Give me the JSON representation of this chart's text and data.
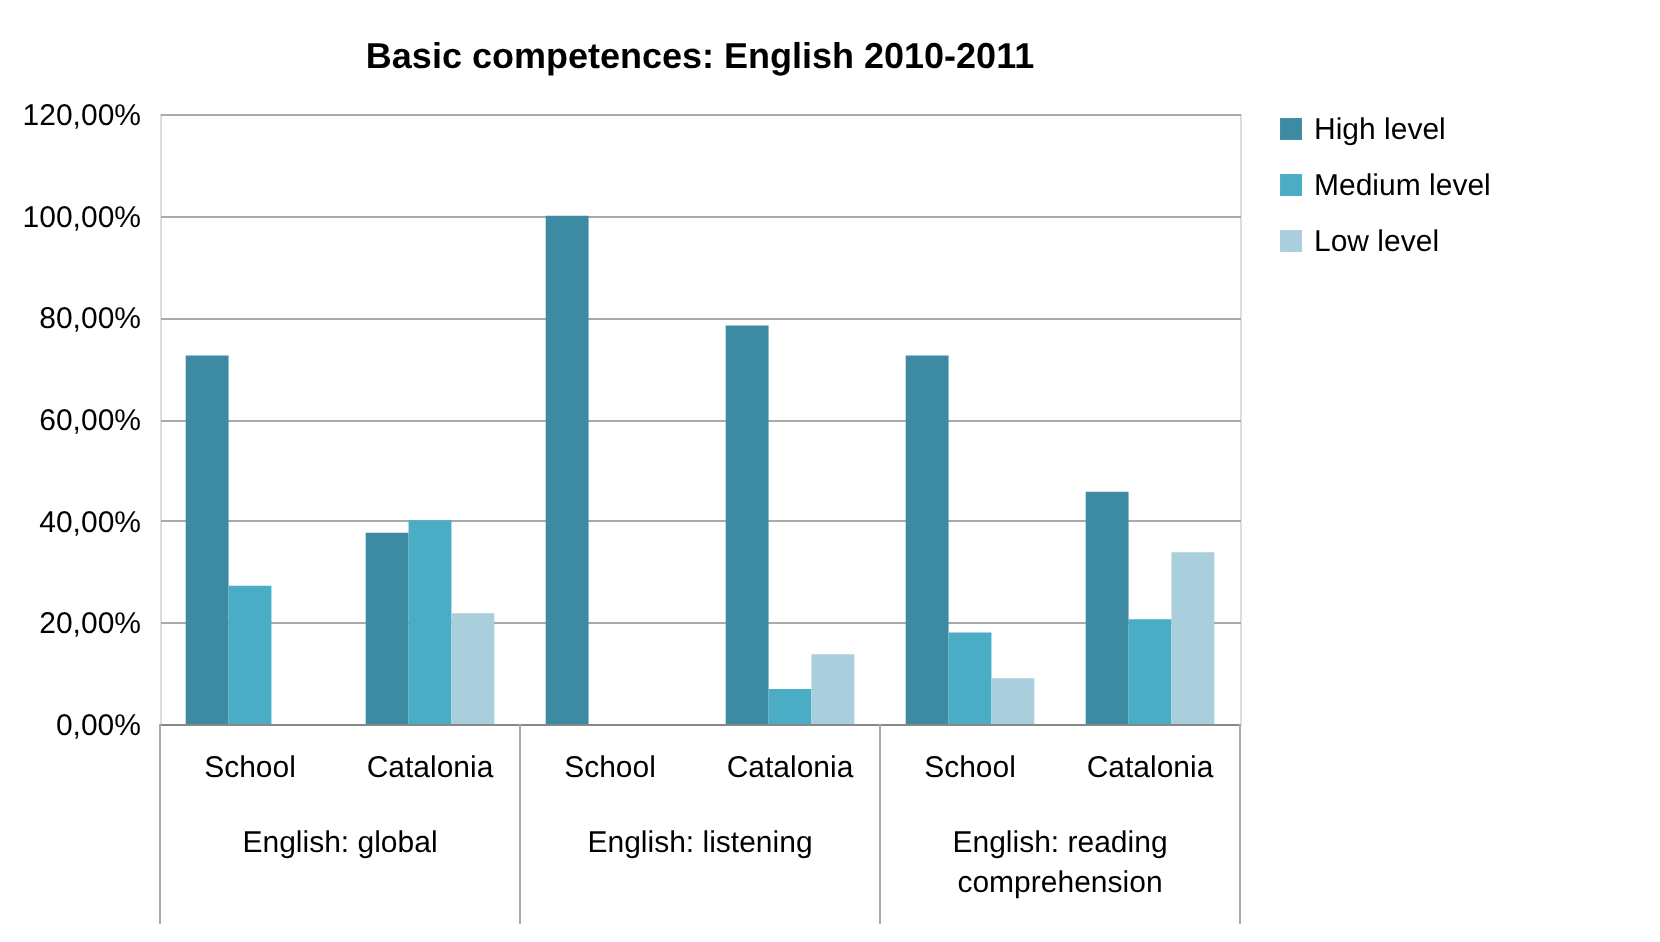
{
  "chart_data": {
    "type": "bar",
    "title": "Basic competences: English 2010-2011",
    "categories": [
      "School",
      "Catalonia",
      "School",
      "Catalonia",
      "School",
      "Catalonia"
    ],
    "series": [
      {
        "name": "High level",
        "color": "#3d8ba3",
        "values": [
          72.5,
          37.6,
          100,
          78.4,
          72.5,
          45.7
        ]
      },
      {
        "name": "Medium level",
        "color": "#4bacc6",
        "values": [
          27.2,
          40.1,
          0,
          6.9,
          18.0,
          20.6
        ]
      },
      {
        "name": "Low level",
        "color": "#a9cfdd",
        "values": [
          0,
          21.8,
          0,
          13.7,
          9.0,
          33.8
        ]
      }
    ],
    "annotations": [
      "English: global",
      "English: listening",
      "English: reading comprehension"
    ],
    "ylim": [
      0,
      120
    ],
    "yticks": [
      {
        "value": 0,
        "label": "0,00%"
      },
      {
        "value": 20,
        "label": "20,00%"
      },
      {
        "value": 40,
        "label": "40,00%"
      },
      {
        "value": 60,
        "label": "60,00%"
      },
      {
        "value": 80,
        "label": "80,00%"
      },
      {
        "value": 100,
        "label": "100,00%"
      },
      {
        "value": 120,
        "label": "120,00%"
      }
    ],
    "grid": "y",
    "legend": "right"
  }
}
